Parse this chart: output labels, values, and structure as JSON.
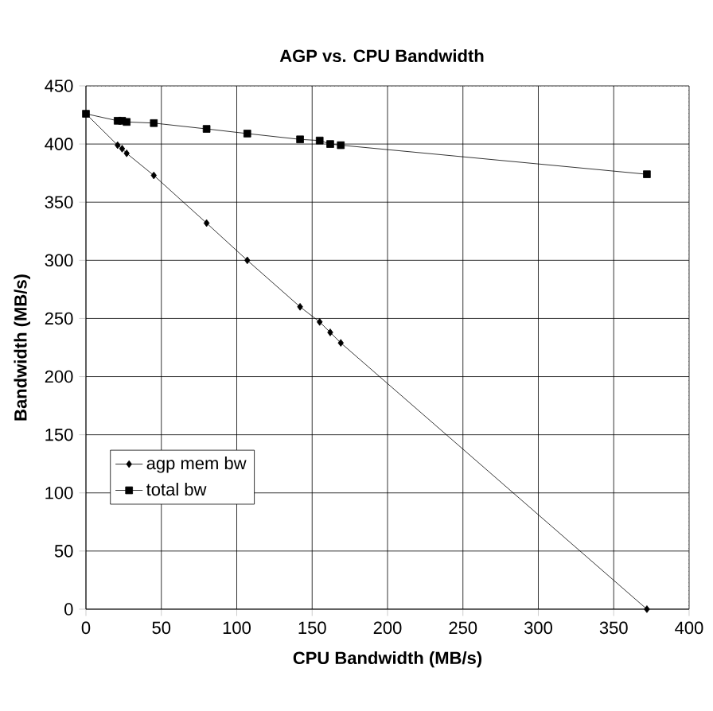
{
  "chart_data": {
    "type": "line",
    "title": "AGP vs. CPU Bandwidth",
    "xlabel": "CPU Bandwidth (MB/s)",
    "ylabel": "Bandwidth (MB/s)",
    "x": [
      0,
      21,
      24,
      27,
      45,
      80,
      107,
      142,
      155,
      162,
      169,
      372
    ],
    "series": [
      {
        "name": "agp mem bw",
        "color": "#000000",
        "marker": "diamond",
        "values": [
          426,
          399,
          396,
          392,
          373,
          332,
          300,
          260,
          247,
          238,
          229,
          0
        ]
      },
      {
        "name": "total bw",
        "color": "#000000",
        "marker": "square",
        "values": [
          426,
          420,
          420,
          419,
          418,
          413,
          409,
          404,
          403,
          400,
          399,
          374
        ]
      }
    ],
    "xlim": [
      0,
      400
    ],
    "xticks": [
      0,
      50,
      100,
      150,
      200,
      250,
      300,
      350,
      400
    ],
    "ylim": [
      0,
      450
    ],
    "yticks": [
      0,
      50,
      100,
      150,
      200,
      250,
      300,
      350,
      400,
      450
    ],
    "grid": true,
    "legend": "left",
    "line_style": "solid"
  }
}
